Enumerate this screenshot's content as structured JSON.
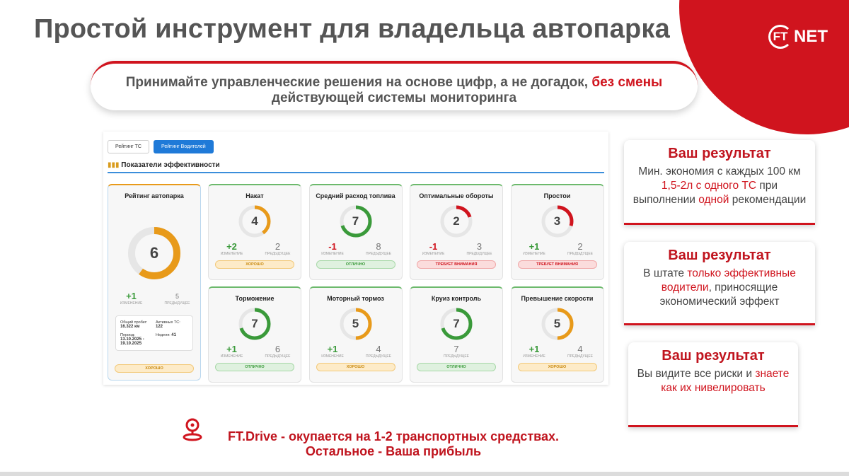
{
  "colors": {
    "brand_red": "#d0141e",
    "green": "#3a9a3a",
    "orange": "#e89a1a",
    "blue": "#1f7ad8"
  },
  "logo": {
    "text_ft": "FT",
    "text_net": "NET"
  },
  "title": "Простой инструмент для владельца автопарка",
  "subtitle": {
    "part1": "Принимайте управленческие решения на основе цифр, а не догадок, ",
    "highlight": "без смены",
    "part2": "действующей системы мониторинга"
  },
  "dashboard": {
    "tabs": [
      {
        "label": "Рейтинг ТС",
        "active": false
      },
      {
        "label": "Рейтинг Водителей",
        "active": true
      }
    ],
    "section_icon": "bar-chart-icon",
    "section_title": "Показатели эффективности",
    "fleet": {
      "title": "Рейтинг автопарка",
      "value": "6",
      "fill": 0.6,
      "color": "#e89a1a",
      "change": "+1",
      "change_label": "ИЗМЕНЕНИЕ",
      "previous": "5",
      "previous_label": "ПРЕДЫДУЩЕЕ",
      "info": {
        "mileage_label": "Общий пробег:",
        "mileage_value": "16.322 км",
        "active_label": "Активных ТС:",
        "active_value": "122",
        "period_label": "Период:",
        "period_value": "13.10.2025 - 19.10.2025",
        "week_label": "Неделя:",
        "week_value": "41"
      },
      "status": "ХОРОШО"
    },
    "cards": [
      {
        "title": "Накат",
        "value": "4",
        "fill": 0.4,
        "color": "#e89a1a",
        "change": "+2",
        "change_type": "pos",
        "change_label": "ИЗМЕНЕНИЕ",
        "previous": "2",
        "previous_label": "ПРЕДЫДУЩЕЕ",
        "status": "ХОРОШО",
        "status_type": "good"
      },
      {
        "title": "Средний расход топлива",
        "value": "7",
        "fill": 0.7,
        "color": "#3a9a3a",
        "change": "-1",
        "change_type": "neg",
        "change_label": "ИЗМЕНЕНИЕ",
        "previous": "8",
        "previous_label": "ПРЕДЫДУЩЕЕ",
        "status": "ОТЛИЧНО",
        "status_type": "great"
      },
      {
        "title": "Оптимальные обороты",
        "value": "2",
        "fill": 0.2,
        "color": "#d0141e",
        "change": "-1",
        "change_type": "neg",
        "change_label": "ИЗМЕНЕНИЕ",
        "previous": "3",
        "previous_label": "ПРЕДЫДУЩЕЕ",
        "status": "ТРЕБУЕТ ВНИМАНИЯ",
        "status_type": "warn"
      },
      {
        "title": "Простои",
        "value": "3",
        "fill": 0.3,
        "color": "#d0141e",
        "change": "+1",
        "change_type": "pos",
        "change_label": "ИЗМЕНЕНИЕ",
        "previous": "2",
        "previous_label": "ПРЕДЫДУЩЕЕ",
        "status": "ТРЕБУЕТ ВНИМАНИЯ",
        "status_type": "warn"
      },
      {
        "title": "Торможение",
        "value": "7",
        "fill": 0.7,
        "color": "#3a9a3a",
        "change": "+1",
        "change_type": "pos",
        "change_label": "ИЗМЕНЕНИЕ",
        "previous": "6",
        "previous_label": "ПРЕДЫДУЩЕЕ",
        "status": "ОТЛИЧНО",
        "status_type": "great"
      },
      {
        "title": "Моторный тормоз",
        "value": "5",
        "fill": 0.5,
        "color": "#e89a1a",
        "change": "+1",
        "change_type": "pos",
        "change_label": "ИЗМЕНЕНИЕ",
        "previous": "4",
        "previous_label": "ПРЕДЫДУЩЕЕ",
        "status": "ХОРОШО",
        "status_type": "good"
      },
      {
        "title": "Круиз контроль",
        "value": "7",
        "fill": 0.7,
        "color": "#3a9a3a",
        "change": "",
        "change_type": "neu",
        "change_label": "",
        "previous": "7",
        "previous_label": "ПРЕДЫДУЩЕЕ",
        "status": "ОТЛИЧНО",
        "status_type": "great"
      },
      {
        "title": "Превышение скорости",
        "value": "5",
        "fill": 0.5,
        "color": "#e89a1a",
        "change": "+1",
        "change_type": "pos",
        "change_label": "ИЗМЕНЕНИЕ",
        "previous": "4",
        "previous_label": "ПРЕДЫДУЩЕЕ",
        "status": "ХОРОШО",
        "status_type": "good"
      }
    ]
  },
  "results": [
    {
      "title": "Ваш результат",
      "text_html": "Мин. экономия с каждых 100 км <span class=\"hl\">1,5-2л с одного ТС</span> при выполнении <span class=\"hl\">одной</span> рекомендации"
    },
    {
      "title": "Ваш результат",
      "text_html": "В штате <span class=\"hl\">только эффективные водители</span>, приносящие экономический эффект"
    },
    {
      "title": "Ваш результат",
      "text_html": "Вы видите все риски и <span class=\"hl\">знаете как их нивелировать</span>"
    }
  ],
  "footer": {
    "icon": "location-pin-icon",
    "line1": "FT.Drive - окупается на 1-2 транспортных средствах.",
    "line2": "Остальное - Ваша прибыль"
  }
}
